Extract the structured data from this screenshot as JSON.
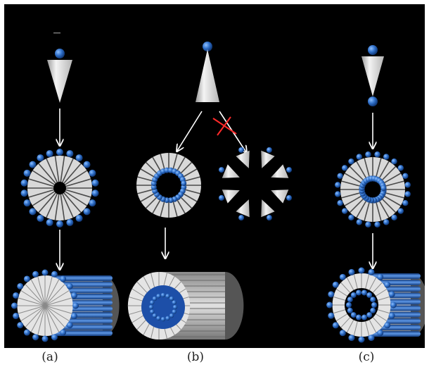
{
  "captions": {
    "a": "(a)",
    "b": "(b)",
    "c": "(c)"
  },
  "colors": {
    "background": "#000000",
    "head": "#2f6fc8",
    "head_highlight": "#8ec0ff",
    "cone": "#e6e6e6",
    "cone_shade": "#9a9a9a",
    "arrow": "#ffffff",
    "blocked_mark": "#ff2a2a"
  },
  "columns": [
    {
      "id": "a",
      "molecule": "single-head-cone",
      "assembly": "micelle-outward-heads",
      "aggregate": "cylindrical-micelle"
    },
    {
      "id": "b",
      "molecule": "single-head-cone-inverted",
      "assembly": "micelle-inward-heads",
      "blocked_assembly": "star-micelle",
      "aggregate": "inverted-cylinder"
    },
    {
      "id": "c",
      "molecule": "double-head-cone",
      "assembly": "bolaform-ring",
      "aggregate": "bolaform-cylinder"
    }
  ]
}
